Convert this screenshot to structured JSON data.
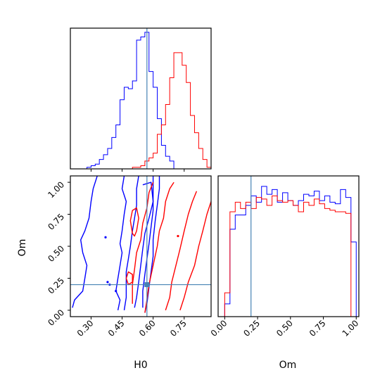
{
  "chart_data": {
    "type": "corner",
    "parameters": [
      "H0",
      "Om"
    ],
    "truth": {
      "H0": 0.57,
      "Om": 0.2
    },
    "colors": {
      "blue": "#0000ff",
      "red": "#ff0000",
      "truth": "#4682b4"
    },
    "panels": {
      "h0_hist": {
        "type": "histogram",
        "xlim": [
          0.2,
          0.88
        ],
        "xticks": [
          0.3,
          0.45,
          0.6,
          0.75
        ],
        "yticks_shown": false,
        "bin_edges": [
          0.2,
          0.22,
          0.24,
          0.26,
          0.28,
          0.3,
          0.32,
          0.34,
          0.36,
          0.38,
          0.4,
          0.42,
          0.44,
          0.46,
          0.48,
          0.5,
          0.52,
          0.54,
          0.56,
          0.58,
          0.6,
          0.62,
          0.64,
          0.66,
          0.68,
          0.7,
          0.72,
          0.74,
          0.76,
          0.78,
          0.8,
          0.82,
          0.84,
          0.86,
          0.88
        ],
        "series": [
          {
            "color": "blue",
            "counts": [
              0,
              0,
              0,
              0,
              1,
              2,
              3,
              6,
              9,
              13,
              20,
              28,
              44,
              52,
              51,
              56,
              82,
              84,
              87,
              62,
              52,
              32,
              15,
              8,
              5,
              0,
              0,
              0,
              0,
              0,
              0,
              0,
              0,
              0
            ]
          },
          {
            "color": "red",
            "counts": [
              0,
              0,
              0,
              0,
              0,
              0,
              0,
              0,
              0,
              0,
              0,
              0,
              0,
              0,
              0,
              1,
              1,
              2,
              5,
              7,
              10,
              22,
              28,
              41,
              58,
              74,
              74,
              66,
              55,
              34,
              23,
              13,
              6,
              1
            ]
          }
        ]
      },
      "om_hist": {
        "type": "histogram",
        "xlim": [
          -0.05,
          1.02
        ],
        "xticks": [
          "0.00",
          "0.25",
          "0.50",
          "0.75",
          "1.00"
        ],
        "xtick_values": [
          0,
          0.25,
          0.5,
          0.75,
          1.0
        ],
        "xlabel": "Om",
        "bin_edges": [
          0.0,
          0.04,
          0.08,
          0.12,
          0.16,
          0.2,
          0.24,
          0.28,
          0.32,
          0.36,
          0.4,
          0.44,
          0.48,
          0.52,
          0.56,
          0.6,
          0.64,
          0.68,
          0.72,
          0.76,
          0.8,
          0.84,
          0.88,
          0.92,
          0.96,
          1.0
        ],
        "series": [
          {
            "color": "blue",
            "counts": [
              8,
              55,
              64,
              64,
              70,
              76,
              72,
              82,
              77,
              80,
              72,
              78,
              73,
              70,
              73,
              77,
              76,
              79,
              73,
              76,
              72,
              71,
              80,
              75,
              47
            ]
          },
          {
            "color": "red",
            "counts": [
              15,
              66,
              72,
              68,
              72,
              68,
              75,
              74,
              70,
              76,
              73,
              72,
              73,
              70,
              66,
              72,
              70,
              74,
              71,
              68,
              67,
              66,
              66,
              65,
              0
            ]
          }
        ]
      },
      "joint": {
        "type": "contour",
        "xlim": [
          0.2,
          0.88
        ],
        "ylim": [
          -0.05,
          1.05
        ],
        "xticks": [
          "0.30",
          "0.45",
          "0.60",
          "0.75"
        ],
        "xtick_values": [
          0.3,
          0.45,
          0.6,
          0.75
        ],
        "yticks": [
          "0.00",
          "0.25",
          "0.50",
          "0.75",
          "1.00"
        ],
        "ytick_values": [
          0,
          0.25,
          0.5,
          0.75,
          1.0
        ],
        "xlabel": "H0",
        "ylabel": "Om",
        "series": [
          {
            "color": "blue",
            "contours": [
              [
                [
                  0.33,
                  1.05
                ],
                [
                  0.31,
                  0.95
                ],
                [
                  0.3,
                  0.85
                ],
                [
                  0.29,
                  0.72
                ],
                [
                  0.27,
                  0.62
                ],
                [
                  0.25,
                  0.55
                ],
                [
                  0.26,
                  0.45
                ],
                [
                  0.28,
                  0.35
                ],
                [
                  0.27,
                  0.25
                ],
                [
                  0.26,
                  0.15
                ],
                [
                  0.22,
                  0.08
                ],
                [
                  0.21,
                  0.02
                ]
              ],
              [
                [
                  0.46,
                  1.05
                ],
                [
                  0.45,
                  0.95
                ],
                [
                  0.47,
                  0.85
                ],
                [
                  0.46,
                  0.75
                ],
                [
                  0.45,
                  0.62
                ],
                [
                  0.44,
                  0.52
                ],
                [
                  0.45,
                  0.45
                ],
                [
                  0.44,
                  0.35
                ],
                [
                  0.43,
                  0.25
                ],
                [
                  0.42,
                  0.15
                ],
                [
                  0.44,
                  0.08
                ],
                [
                  0.43,
                  0.0
                ]
              ],
              [
                [
                  0.53,
                  1.05
                ],
                [
                  0.52,
                  0.95
                ],
                [
                  0.52,
                  0.82
                ],
                [
                  0.51,
                  0.72
                ],
                [
                  0.5,
                  0.62
                ],
                [
                  0.49,
                  0.5
                ],
                [
                  0.48,
                  0.4
                ],
                [
                  0.47,
                  0.3
                ],
                [
                  0.47,
                  0.2
                ],
                [
                  0.47,
                  0.1
                ],
                [
                  0.46,
                  0.0
                ]
              ],
              [
                [
                  0.55,
                  0.98
                ],
                [
                  0.59,
                  1.0
                ],
                [
                  0.6,
                  0.85
                ],
                [
                  0.58,
                  0.72
                ],
                [
                  0.56,
                  0.6
                ],
                [
                  0.55,
                  0.48
                ],
                [
                  0.54,
                  0.35
                ],
                [
                  0.53,
                  0.22
                ],
                [
                  0.52,
                  0.1
                ],
                [
                  0.51,
                  0.02
                ]
              ],
              [
                [
                  0.6,
                  1.05
                ],
                [
                  0.6,
                  0.9
                ],
                [
                  0.6,
                  0.78
                ],
                [
                  0.59,
                  0.65
                ],
                [
                  0.58,
                  0.52
                ],
                [
                  0.57,
                  0.4
                ],
                [
                  0.56,
                  0.28
                ],
                [
                  0.55,
                  0.15
                ],
                [
                  0.55,
                  0.02
                ]
              ],
              [
                [
                  0.63,
                  1.05
                ],
                [
                  0.63,
                  0.95
                ],
                [
                  0.62,
                  0.82
                ],
                [
                  0.61,
                  0.7
                ],
                [
                  0.6,
                  0.55
                ],
                [
                  0.6,
                  0.42
                ],
                [
                  0.59,
                  0.3
                ],
                [
                  0.58,
                  0.18
                ],
                [
                  0.57,
                  0.05
                ],
                [
                  0.56,
                  -0.02
                ]
              ]
            ],
            "points": [
              [
                0.37,
                0.57
              ],
              [
                0.42,
                0.15
              ],
              [
                0.39,
                0.2
              ],
              [
                0.38,
                0.22
              ]
            ]
          },
          {
            "color": "red",
            "contours": [
              [
                [
                  0.5,
                  0.6
                ],
                [
                  0.49,
                  0.7
                ],
                [
                  0.5,
                  0.78
                ],
                [
                  0.52,
                  0.8
                ],
                [
                  0.53,
                  0.72
                ],
                [
                  0.52,
                  0.62
                ],
                [
                  0.51,
                  0.58
                ],
                [
                  0.5,
                  0.6
                ]
              ],
              [
                [
                  0.47,
                  0.25
                ],
                [
                  0.48,
                  0.3
                ],
                [
                  0.5,
                  0.28
                ],
                [
                  0.5,
                  0.22
                ],
                [
                  0.48,
                  0.2
                ],
                [
                  0.47,
                  0.25
                ]
              ],
              [
                [
                  0.5,
                  0.05
                ],
                [
                  0.5,
                  0.2
                ],
                [
                  0.51,
                  0.32
                ],
                [
                  0.52,
                  0.45
                ],
                [
                  0.54,
                  0.55
                ],
                [
                  0.55,
                  0.68
                ],
                [
                  0.57,
                  0.8
                ],
                [
                  0.58,
                  0.92
                ],
                [
                  0.6,
                  1.0
                ]
              ],
              [
                [
                  0.56,
                  -0.02
                ],
                [
                  0.57,
                  0.08
                ],
                [
                  0.58,
                  0.2
                ],
                [
                  0.6,
                  0.35
                ],
                [
                  0.62,
                  0.5
                ],
                [
                  0.63,
                  0.62
                ],
                [
                  0.65,
                  0.72
                ],
                [
                  0.66,
                  0.85
                ],
                [
                  0.68,
                  0.95
                ],
                [
                  0.7,
                  1.0
                ]
              ],
              [
                [
                  0.66,
                  0.0
                ],
                [
                  0.68,
                  0.1
                ],
                [
                  0.69,
                  0.22
                ],
                [
                  0.71,
                  0.35
                ],
                [
                  0.73,
                  0.48
                ],
                [
                  0.75,
                  0.62
                ],
                [
                  0.77,
                  0.75
                ],
                [
                  0.79,
                  0.85
                ],
                [
                  0.81,
                  0.93
                ]
              ],
              [
                [
                  0.73,
                  0.0
                ],
                [
                  0.75,
                  0.1
                ],
                [
                  0.77,
                  0.22
                ],
                [
                  0.8,
                  0.35
                ],
                [
                  0.82,
                  0.5
                ],
                [
                  0.84,
                  0.62
                ],
                [
                  0.86,
                  0.75
                ],
                [
                  0.88,
                  0.85
                ]
              ]
            ],
            "points": [
              [
                0.72,
                0.58
              ]
            ]
          }
        ]
      }
    }
  }
}
